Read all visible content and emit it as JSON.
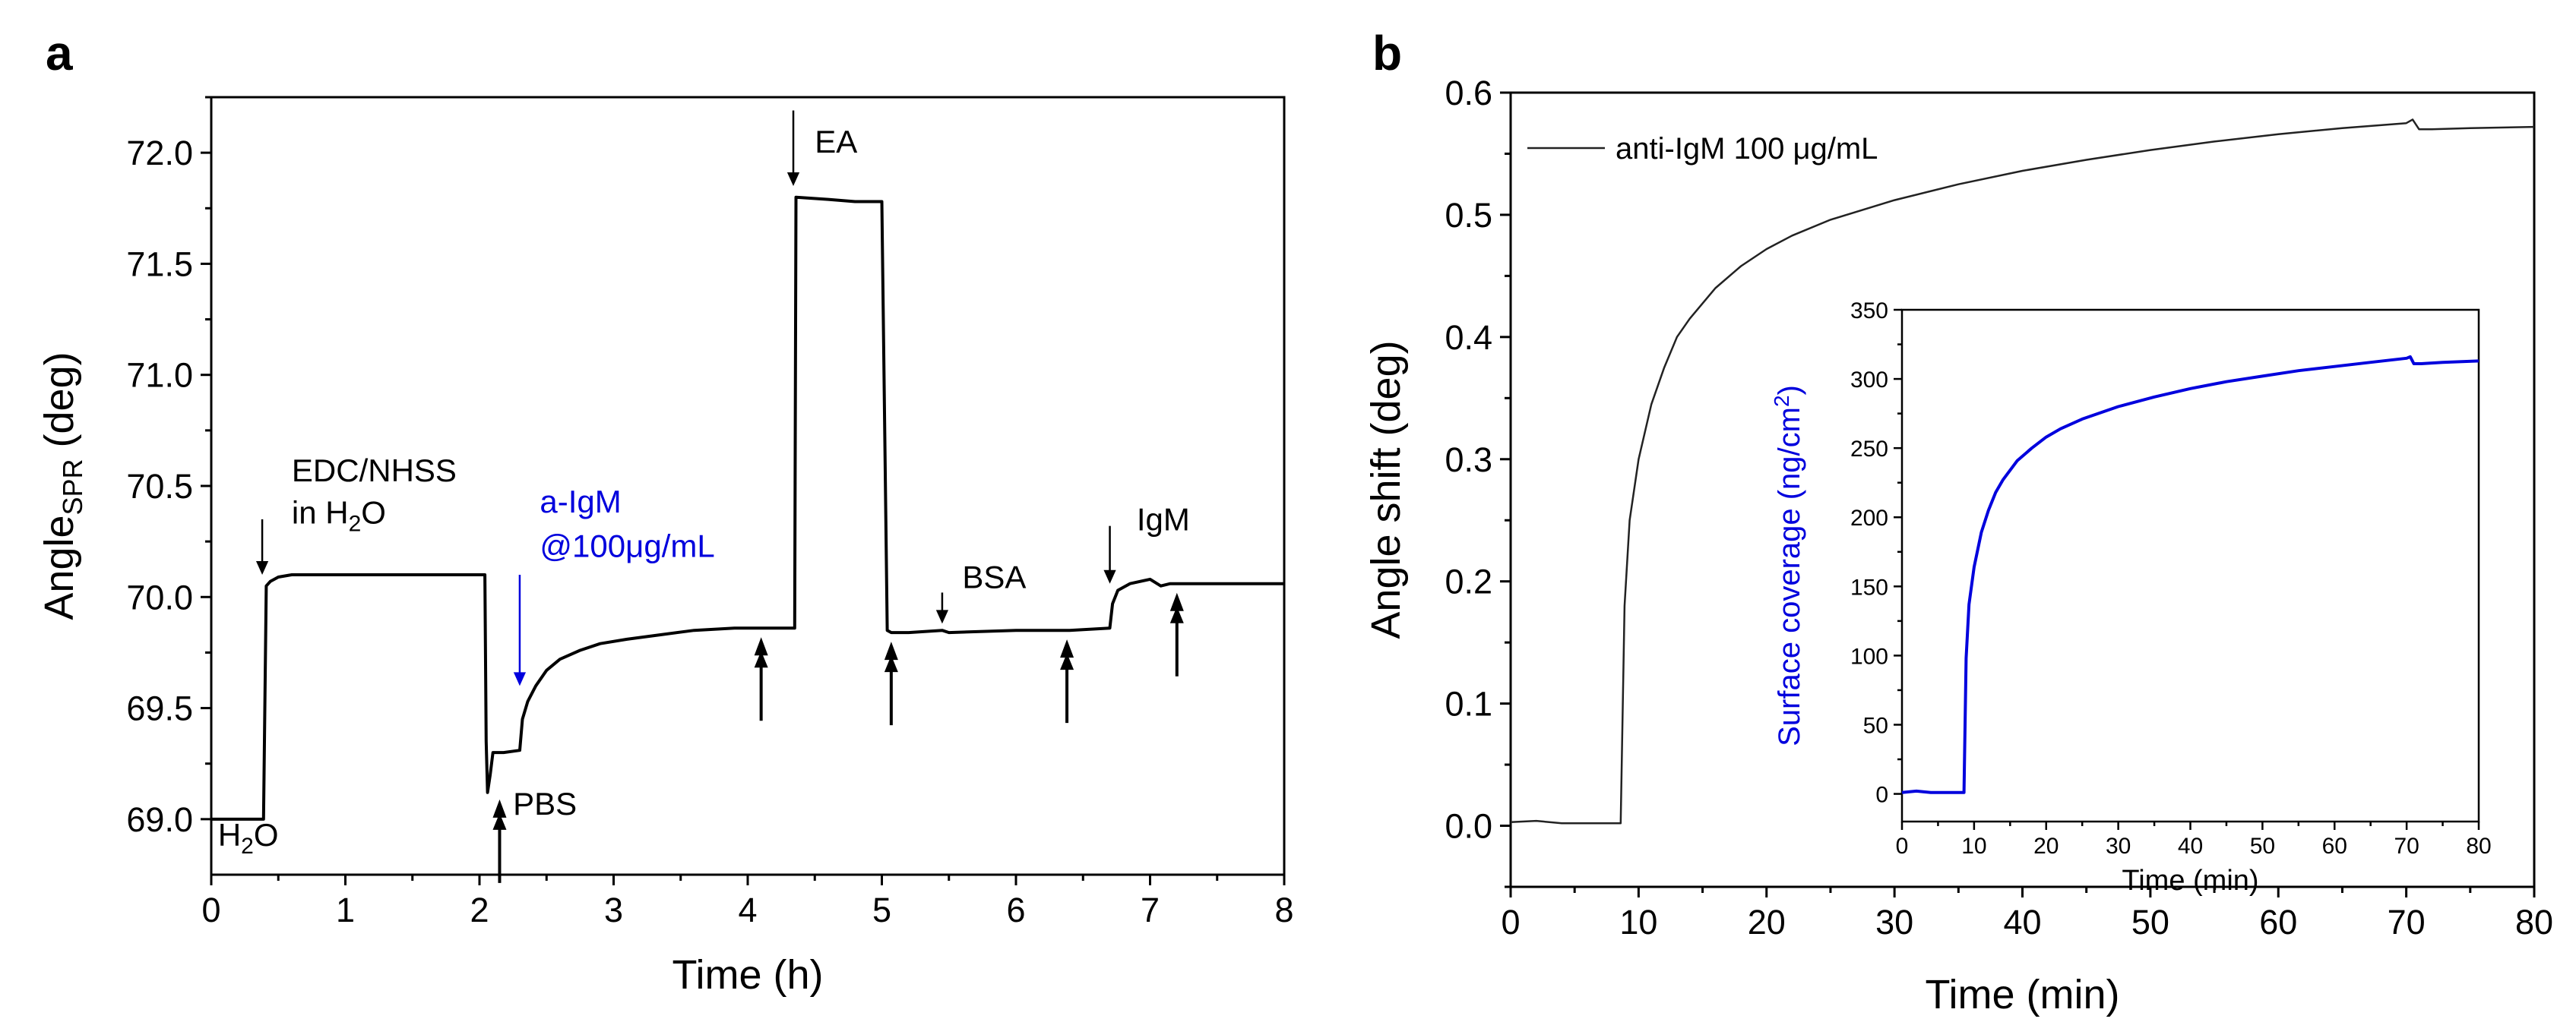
{
  "colors": {
    "axis": "#000000",
    "curve": "#000000",
    "curve_b": "#222222",
    "blue": "#0000dd"
  },
  "chart_data": [
    {
      "id": "a",
      "type": "line",
      "panel_label": "a",
      "xlabel": "Time (h)",
      "ylabel_main": "Angle",
      "ylabel_sub": "SPR",
      "ylabel_unit": " (deg)",
      "xlim": [
        0,
        8
      ],
      "ylim": [
        68.75,
        72.25
      ],
      "xticks": [
        0,
        1,
        2,
        3,
        4,
        5,
        6,
        7,
        8
      ],
      "yticks": [
        "69.0",
        "69.5",
        "70.0",
        "70.5",
        "71.0",
        "71.5",
        "72.0"
      ],
      "series": [
        {
          "name": "SPR angle",
          "x": [
            0,
            0.39,
            0.41,
            0.44,
            0.5,
            0.6,
            0.8,
            1.2,
            2.04,
            2.05,
            2.06,
            2.08,
            2.1,
            2.15,
            2.18,
            2.3,
            2.32,
            2.36,
            2.42,
            2.5,
            2.6,
            2.75,
            2.9,
            3.1,
            3.35,
            3.6,
            3.9,
            4.0,
            4.1,
            4.35,
            4.36,
            4.6,
            4.8,
            5.0,
            5.04,
            5.07,
            5.2,
            5.45,
            5.5,
            6.0,
            6.4,
            6.7,
            6.72,
            6.76,
            6.85,
            7.0,
            7.08,
            7.15,
            7.4,
            7.8,
            8.0
          ],
          "y": [
            69.0,
            69.0,
            70.05,
            70.07,
            70.09,
            70.1,
            70.1,
            70.1,
            70.1,
            69.35,
            69.12,
            69.2,
            69.3,
            69.3,
            69.3,
            69.31,
            69.45,
            69.53,
            69.6,
            69.67,
            69.72,
            69.76,
            69.79,
            69.81,
            69.83,
            69.85,
            69.86,
            69.86,
            69.86,
            69.86,
            71.8,
            71.79,
            71.78,
            71.78,
            69.85,
            69.84,
            69.84,
            69.85,
            69.84,
            69.85,
            69.85,
            69.86,
            69.97,
            70.03,
            70.06,
            70.08,
            70.05,
            70.06,
            70.06,
            70.06,
            70.06
          ]
        }
      ],
      "annotations": [
        {
          "text": "H",
          "sub": "2",
          "tail": "O",
          "color": "black",
          "x": 0.05,
          "y": 68.88
        },
        {
          "text": "EDC/NHSS",
          "color": "black",
          "x": 0.6,
          "y": 70.52
        },
        {
          "text": "in H",
          "sub": "2",
          "tail": "O",
          "color": "black",
          "x": 0.6,
          "y": 70.33
        },
        {
          "text": "PBS",
          "color": "black",
          "x": 2.25,
          "y": 69.02
        },
        {
          "text": "a-IgM",
          "color": "blue",
          "x": 2.45,
          "y": 70.38
        },
        {
          "text": "@100μg/mL",
          "color": "blue",
          "x": 2.45,
          "y": 70.18
        },
        {
          "text": "EA",
          "color": "black",
          "x": 4.5,
          "y": 72.0
        },
        {
          "text": "BSA",
          "color": "black",
          "x": 5.6,
          "y": 70.04
        },
        {
          "text": "IgM",
          "color": "black",
          "x": 6.9,
          "y": 70.3
        }
      ],
      "injections": [
        {
          "x": 0.38,
          "y_top": 70.35,
          "y_bottom": 70.1,
          "color": "black"
        },
        {
          "x": 2.3,
          "y_top": 70.1,
          "y_bottom": 69.6,
          "color": "blue"
        },
        {
          "x": 4.34,
          "y_top": 72.19,
          "y_bottom": 71.85,
          "color": "black"
        },
        {
          "x": 5.45,
          "y_top": 70.02,
          "y_bottom": 69.88,
          "color": "black"
        },
        {
          "x": 6.7,
          "y_top": 70.32,
          "y_bottom": 70.06,
          "color": "black"
        }
      ],
      "rinse_marks": [
        2.15,
        4.1,
        5.07,
        6.38,
        7.2
      ]
    },
    {
      "id": "b",
      "type": "line",
      "panel_label": "b",
      "xlabel": "Time (min)",
      "ylabel": "Angle shift (deg)",
      "xlim": [
        0,
        80
      ],
      "ylim": [
        -0.05,
        0.6
      ],
      "xticks": [
        0,
        10,
        20,
        30,
        40,
        50,
        60,
        70,
        80
      ],
      "yticks": [
        "0.0",
        "0.1",
        "0.2",
        "0.3",
        "0.4",
        "0.5",
        "0.6"
      ],
      "legend": "anti-IgM 100 μg/mL",
      "series": [
        {
          "name": "anti-IgM 100 μg/mL",
          "x": [
            0,
            2,
            4,
            6,
            8.6,
            8.9,
            9.3,
            10,
            11,
            12,
            13,
            14,
            16,
            18,
            20,
            22,
            25,
            30,
            35,
            40,
            45,
            50,
            55,
            60,
            65,
            70,
            70.5,
            71,
            72,
            75,
            80
          ],
          "y": [
            0.003,
            0.004,
            0.002,
            0.002,
            0.002,
            0.18,
            0.25,
            0.3,
            0.345,
            0.375,
            0.4,
            0.415,
            0.44,
            0.458,
            0.472,
            0.483,
            0.496,
            0.512,
            0.525,
            0.536,
            0.545,
            0.553,
            0.56,
            0.566,
            0.571,
            0.575,
            0.578,
            0.57,
            0.57,
            0.571,
            0.572
          ]
        }
      ]
    },
    {
      "id": "b-inset",
      "type": "line",
      "xlabel": "Time (min)",
      "ylabel_main": "Surface coverage (ng/cm",
      "ylabel_sup": "2",
      "ylabel_tail": ")",
      "xlim": [
        0,
        80
      ],
      "ylim": [
        -20,
        350
      ],
      "xticks": [
        0,
        10,
        20,
        30,
        40,
        50,
        60,
        70,
        80
      ],
      "yticks": [
        0,
        50,
        100,
        150,
        200,
        250,
        300,
        350
      ],
      "series": [
        {
          "name": "Surface coverage",
          "x": [
            0,
            2,
            4,
            6,
            8.6,
            8.9,
            9.3,
            10,
            11,
            12,
            13,
            14,
            16,
            18,
            20,
            22,
            25,
            30,
            35,
            40,
            45,
            50,
            55,
            60,
            65,
            70,
            70.5,
            71,
            72,
            75,
            80
          ],
          "y": [
            1,
            2,
            1,
            1,
            1,
            98,
            137,
            164,
            189,
            205,
            218,
            227,
            241,
            250,
            258,
            264,
            271,
            280,
            287,
            293,
            298,
            302,
            306,
            309,
            312,
            315,
            316,
            311,
            311,
            312,
            313
          ]
        }
      ]
    }
  ]
}
